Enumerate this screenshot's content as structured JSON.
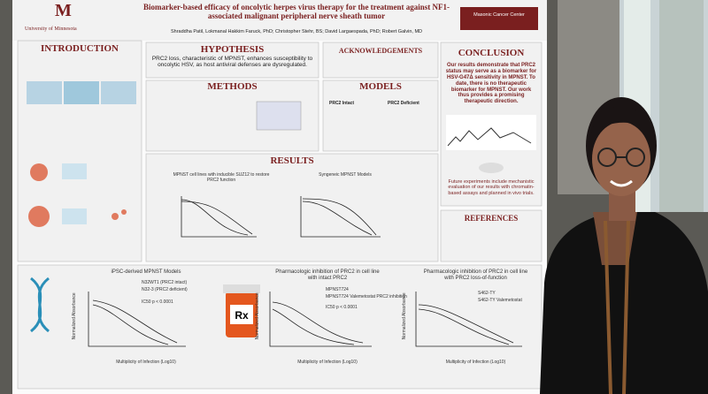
{
  "header": {
    "title": "Biomarker-based efficacy of oncolytic herpes virus therapy for the treatment against NF1-associated malignant peripheral nerve sheath tumor",
    "authors": "Shraddha Patil, Lokmanal Hakkim Faruck, PhD; Christopher Stehr, BS; David Largaespada, PhD; Robert Galvin, MD",
    "university": "University of Minnesota",
    "cancer_center": "Masonic Cancer Center"
  },
  "introduction": {
    "heading": "INTRODUCTION"
  },
  "hypothesis": {
    "heading": "HYPOTHESIS",
    "text": "PRC2 loss, characteristic of MPNST, enhances susceptibility to oncolytic HSV, as host antiviral defenses are dysregulated."
  },
  "acknowledgements": {
    "heading": "ACKNOWLEDGEMENTS"
  },
  "conclusion": {
    "heading": "CONCLUSION",
    "text": "Our results demonstrate that PRC2 status may serve as a biomarker for HSV-G47Δ sensitivity in MPNST. To date, there is no therapeutic biomarker for MPNST. Our work thus provides a promising therapeutic direction.",
    "future": "Future experiments include mechanistic evaluation of our results with chromatin-based assays and planned in vivo trials."
  },
  "methods": {
    "heading": "METHODS"
  },
  "models": {
    "heading": "MODELS",
    "intact": "PRC2 Intact",
    "deficient": "PRC2 Deficient"
  },
  "results": {
    "heading": "RESULTS",
    "chart_titles": [
      "MPNST cell lines with inducible SUZ12 to restore PRC2 function",
      "Syngeneic MPNST Models"
    ]
  },
  "references": {
    "heading": "REFERENCES"
  },
  "bottom_charts": [
    {
      "title": "iPSC-derived MPNST Models",
      "legend": [
        "N32WT1 (PRC2 intact)",
        "N32-3 (PRC2 deficient)"
      ],
      "annotation": "IC50 p < 0.0001",
      "x_label": "Multiplicity of Infection (Log10)",
      "y_label": "Normalized Absorbance"
    },
    {
      "title": "Pharmacologic inhibition of PRC2 in cell line with intact PRC2",
      "legend": [
        "MPNST724",
        "MPNST724 Valemetostat PRC2 inhibition"
      ],
      "annotation": "IC50 p < 0.0001",
      "x_label": "Multiplicity of Infection (Log10)",
      "y_label": "Normalized Absorbance"
    },
    {
      "title": "Pharmacologic inhibition of PRC2 in cell line with PRC2 loss-of-function",
      "legend": [
        "S462-TY",
        "S462-TY Valemetostat"
      ],
      "x_label": "Multiplicity of Infection (Log10)",
      "y_label": "Normalized Absorbance"
    }
  ]
}
